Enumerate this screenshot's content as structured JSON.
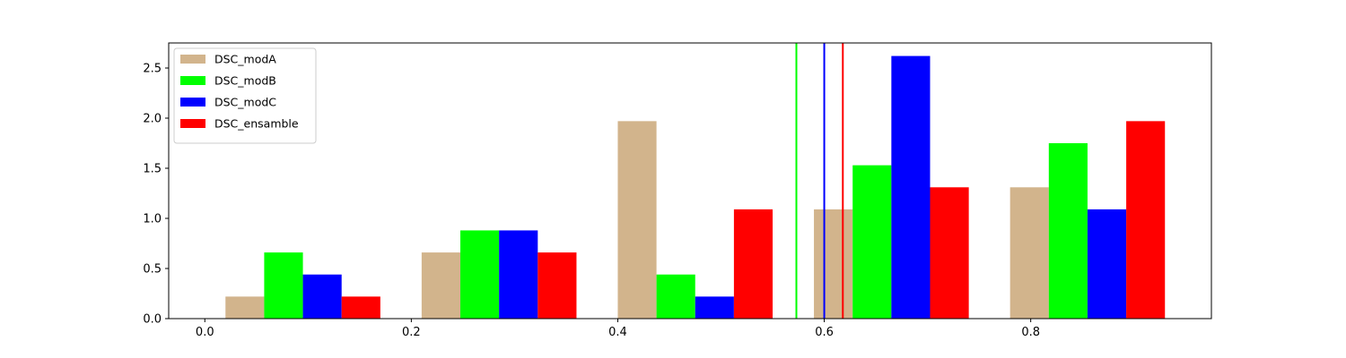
{
  "chart_data": {
    "type": "bar",
    "title": "",
    "xlabel": "",
    "ylabel": "",
    "xlim": [
      -0.035,
      0.975
    ],
    "ylim": [
      0,
      2.75
    ],
    "x_ticks": [
      0.0,
      0.2,
      0.4,
      0.6,
      0.8
    ],
    "x_tick_labels": [
      "0.0",
      "0.2",
      "0.4",
      "0.6",
      "0.8"
    ],
    "y_ticks": [
      0.0,
      0.5,
      1.0,
      1.5,
      2.0,
      2.5
    ],
    "y_tick_labels": [
      "0.0",
      "0.5",
      "1.0",
      "1.5",
      "2.0",
      "2.5"
    ],
    "grid": false,
    "legend_position": "top-left",
    "bins": [
      [
        0.02,
        0.17
      ],
      [
        0.21,
        0.36
      ],
      [
        0.4,
        0.55
      ],
      [
        0.59,
        0.74
      ],
      [
        0.78,
        0.93
      ]
    ],
    "series": [
      {
        "name": "DSC_modA",
        "color": "#d2b48c",
        "values": [
          0.22,
          0.66,
          1.97,
          1.09,
          1.31
        ]
      },
      {
        "name": "DSC_modB",
        "color": "#00ff00",
        "values": [
          0.66,
          0.88,
          0.44,
          1.53,
          1.75
        ]
      },
      {
        "name": "DSC_modC",
        "color": "#0000ff",
        "values": [
          0.44,
          0.88,
          0.22,
          2.62,
          1.09
        ]
      },
      {
        "name": "DSC_ensamble",
        "color": "#ff0000",
        "values": [
          0.22,
          0.66,
          1.09,
          1.31,
          1.97
        ]
      }
    ],
    "vlines": [
      {
        "x": 0.573,
        "color": "#00ff00"
      },
      {
        "x": 0.6,
        "color": "#0000ff"
      },
      {
        "x": 0.618,
        "color": "#ff0000"
      }
    ]
  }
}
